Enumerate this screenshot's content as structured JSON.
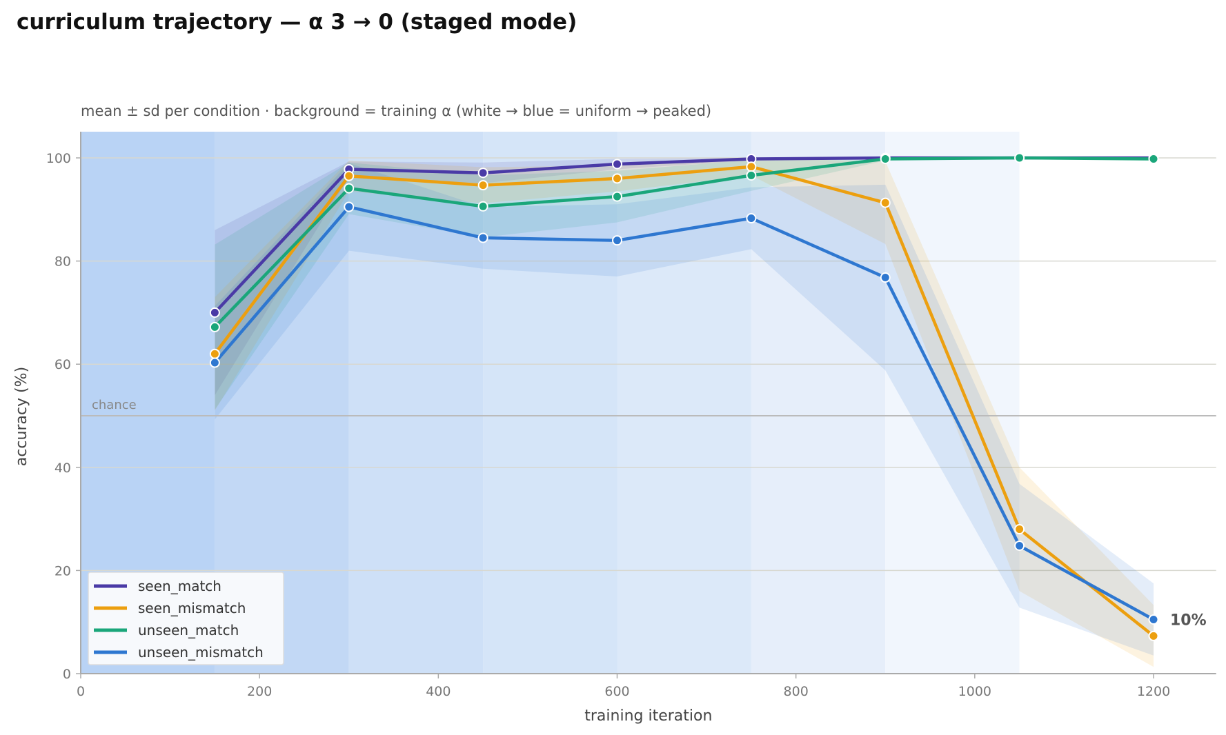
{
  "title": "curriculum trajectory — α 3 → 0 (staged mode)",
  "chart_data": {
    "type": "line",
    "subtitle": "mean ± sd per condition · background = training α (white → blue = uniform → peaked)",
    "xlabel": "training iteration",
    "ylabel": "accuracy (%)",
    "xlim": [
      0,
      1270
    ],
    "ylim": [
      0,
      105
    ],
    "xticks": [
      0,
      200,
      400,
      600,
      800,
      1000,
      1200
    ],
    "yticks": [
      0,
      20,
      40,
      60,
      80,
      100
    ],
    "grid": "horizontal",
    "legend_position": "lower-left",
    "chance_level": 50,
    "chance_label": "chance",
    "end_annotation": "10%",
    "background_stages": [
      {
        "x0": 0,
        "x1": 150,
        "color": "#b9d3f5"
      },
      {
        "x0": 150,
        "x1": 300,
        "color": "#c2d8f5"
      },
      {
        "x0": 300,
        "x1": 450,
        "color": "#cee0f7"
      },
      {
        "x0": 450,
        "x1": 600,
        "color": "#d5e5f8"
      },
      {
        "x0": 600,
        "x1": 750,
        "color": "#dce9f9"
      },
      {
        "x0": 750,
        "x1": 900,
        "color": "#e6eefa"
      },
      {
        "x0": 900,
        "x1": 1050,
        "color": "#f1f6fd"
      },
      {
        "x0": 1050,
        "x1": 1270,
        "color": "#ffffff"
      }
    ],
    "x": [
      150,
      300,
      450,
      600,
      750,
      900,
      1050,
      1200
    ],
    "series": [
      {
        "name": "seen_match",
        "color": "#4a3aa6",
        "values": [
          70,
          97.8,
          97.1,
          98.8,
          99.8,
          100,
          100,
          100
        ],
        "sd": [
          16,
          1.5,
          2.0,
          1.0,
          0.3,
          0,
          0,
          0
        ]
      },
      {
        "name": "seen_mismatch",
        "color": "#ec9f0f",
        "values": [
          62,
          96.5,
          94.7,
          96.0,
          98.3,
          91.3,
          28.0,
          7.3
        ],
        "sd": [
          11,
          3.0,
          3.5,
          2.5,
          1.7,
          8.0,
          12,
          6
        ]
      },
      {
        "name": "unseen_match",
        "color": "#1aa67a",
        "values": [
          67.2,
          94.1,
          90.6,
          92.5,
          96.6,
          99.8,
          100,
          99.8
        ],
        "sd": [
          16,
          5.0,
          6.0,
          5.0,
          3.0,
          0.3,
          0,
          0.3
        ]
      },
      {
        "name": "unseen_mismatch",
        "color": "#2e77d0",
        "values": [
          60.3,
          90.5,
          84.5,
          84.0,
          88.3,
          76.8,
          24.8,
          10.5
        ],
        "sd": [
          11,
          8.5,
          6.0,
          7.0,
          6.0,
          18,
          12,
          7
        ]
      }
    ]
  }
}
